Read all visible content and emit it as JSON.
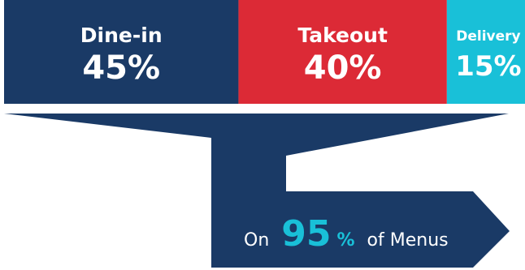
{
  "chart_data": {
    "type": "bar",
    "orientation": "stacked-horizontal",
    "categories": [
      "Dine-in",
      "Takeout",
      "Delivery"
    ],
    "values": [
      45,
      40,
      15
    ],
    "value_labels": [
      "45%",
      "40%",
      "15%"
    ],
    "colors": [
      "#1a3a66",
      "#dc2a36",
      "#19c0d8"
    ],
    "callout": {
      "prefix": "On",
      "value": "95",
      "unit": "%",
      "suffix": "of Menus",
      "value_color": "#19c0d8"
    }
  },
  "colors": {
    "funnel": "#1a3a66",
    "text": "#ffffff"
  }
}
